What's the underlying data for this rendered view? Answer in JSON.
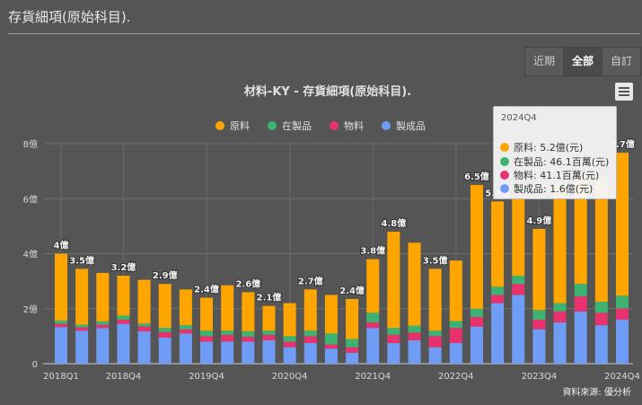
{
  "page_title": "存貨細項(原始科目).",
  "range_buttons": [
    {
      "label": "近期",
      "active": false
    },
    {
      "label": "全部",
      "active": true
    },
    {
      "label": "自訂",
      "active": false
    }
  ],
  "source": "資料來源: 優分析",
  "tooltip": {
    "period": "2024Q4",
    "rows": [
      {
        "text": "原料: 5.2億(元)",
        "color": "#FFA500"
      },
      {
        "text": "在製品: 46.1百萬(元)",
        "color": "#3CB371"
      },
      {
        "text": "物料: 41.1百萬(元)",
        "color": "#E8326E"
      },
      {
        "text": "製成品: 1.6億(元)",
        "color": "#6F9CF5"
      }
    ]
  },
  "chart_data": {
    "type": "bar",
    "stacked": true,
    "title": "材料-KY - 存貨細項(原始科目).",
    "unit": "億",
    "ylim": [
      0,
      8
    ],
    "yticks": [
      "0",
      "2億",
      "4億",
      "6億",
      "8億"
    ],
    "ytick_values": [
      0,
      2,
      4,
      6,
      8
    ],
    "legend_position": "top",
    "categories": [
      "2018Q1",
      "2018Q2",
      "2018Q3",
      "2018Q4",
      "2019Q1",
      "2019Q2",
      "2019Q3",
      "2019Q4",
      "2020Q1",
      "2020Q2",
      "2020Q3",
      "2020Q4",
      "2021Q1",
      "2021Q2",
      "2021Q3",
      "2021Q4",
      "2022Q1",
      "2022Q2",
      "2022Q3",
      "2022Q4",
      "2023Q1",
      "2023Q2",
      "2023Q3",
      "2023Q4",
      "2024Q1",
      "2024Q2",
      "2024Q3",
      "2024Q4"
    ],
    "xtick_labels": [
      "2018Q1",
      "2018Q4",
      "2019Q4",
      "2020Q4",
      "2021Q4",
      "2022Q4",
      "2023Q4",
      "2024Q4"
    ],
    "series": [
      {
        "name": "製成品",
        "color": "#6F9CF5",
        "values": [
          1.33,
          1.2,
          1.3,
          1.45,
          1.18,
          0.95,
          1.1,
          0.8,
          0.8,
          0.8,
          0.85,
          0.6,
          0.75,
          0.55,
          0.4,
          1.3,
          0.75,
          0.85,
          0.6,
          0.75,
          1.35,
          2.2,
          2.5,
          1.25,
          1.5,
          1.9,
          1.4,
          1.6
        ]
      },
      {
        "name": "物料",
        "color": "#E8326E",
        "values": [
          0.12,
          0.12,
          0.12,
          0.15,
          0.18,
          0.2,
          0.15,
          0.2,
          0.25,
          0.18,
          0.2,
          0.2,
          0.25,
          0.15,
          0.2,
          0.2,
          0.3,
          0.28,
          0.4,
          0.55,
          0.35,
          0.3,
          0.4,
          0.35,
          0.4,
          0.55,
          0.45,
          0.411
        ]
      },
      {
        "name": "在製品",
        "color": "#3CB371",
        "values": [
          0.12,
          0.1,
          0.12,
          0.15,
          0.1,
          0.15,
          0.15,
          0.2,
          0.15,
          0.2,
          0.15,
          0.2,
          0.2,
          0.4,
          0.3,
          0.35,
          0.25,
          0.25,
          0.2,
          0.25,
          0.3,
          0.3,
          0.3,
          0.35,
          0.3,
          0.45,
          0.4,
          0.461
        ]
      },
      {
        "name": "原料",
        "color": "#FFA500",
        "values": [
          2.43,
          2.03,
          1.76,
          1.45,
          1.59,
          1.6,
          1.3,
          1.2,
          1.65,
          1.42,
          0.9,
          1.2,
          1.5,
          1.4,
          1.45,
          1.95,
          3.5,
          3.02,
          2.25,
          2.2,
          4.5,
          3.1,
          2.8,
          2.95,
          4.3,
          4.0,
          4.55,
          5.2
        ]
      }
    ],
    "legend_order": [
      "原料",
      "在製品",
      "物料",
      "製成品"
    ],
    "data_labels": [
      {
        "index": 0,
        "text": "4億"
      },
      {
        "index": 1,
        "text": "3.5億"
      },
      {
        "index": 3,
        "text": "3.2億"
      },
      {
        "index": 5,
        "text": "2.9億"
      },
      {
        "index": 7,
        "text": "2.4億"
      },
      {
        "index": 9,
        "text": "2.6億"
      },
      {
        "index": 10,
        "text": "2.1億"
      },
      {
        "index": 12,
        "text": "2.7億"
      },
      {
        "index": 14,
        "text": "2.4億"
      },
      {
        "index": 15,
        "text": "3.8億"
      },
      {
        "index": 16,
        "text": "4.8億"
      },
      {
        "index": 18,
        "text": "3.5億"
      },
      {
        "index": 20,
        "text": "6.5億"
      },
      {
        "index": 21,
        "text": "5.9億"
      },
      {
        "index": 23,
        "text": "4.9億"
      },
      {
        "index": 27,
        "text": "7.7億"
      }
    ]
  }
}
